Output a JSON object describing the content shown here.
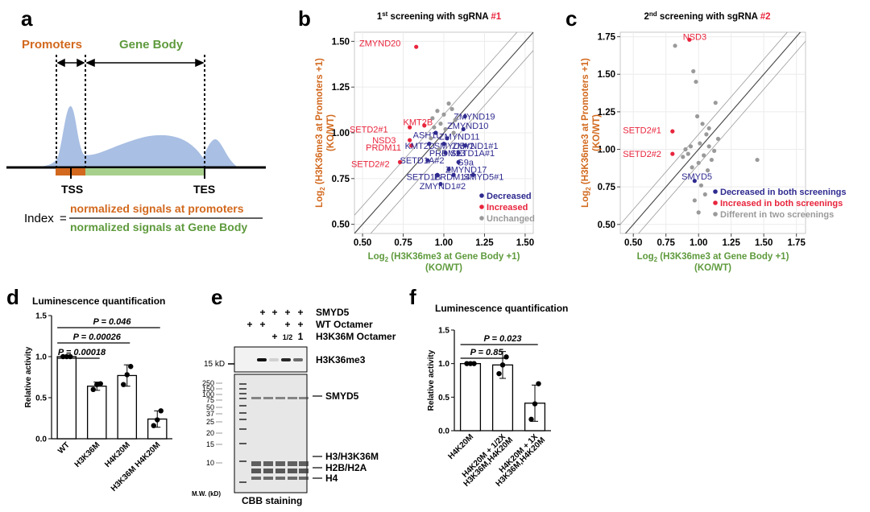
{
  "panel_labels": {
    "a": "a",
    "b": "b",
    "c": "c",
    "d": "d",
    "e": "e",
    "f": "f"
  },
  "colors": {
    "orange": "#d2691e",
    "green": "#5e9a3c",
    "red": "#e8243c",
    "blue": "#2e2a8f",
    "gray": "#9a9a9a",
    "fill": "#a9bfe3"
  },
  "panel_a": {
    "promoters": "Promoters",
    "gene_body": "Gene Body",
    "tss": "TSS",
    "tes": "TES",
    "index_label": "Index",
    "index_eq": "=",
    "numerator": "normalized signals at promoters",
    "denominator": "normalized signals at Gene Body"
  },
  "chart_data": [
    {
      "id": "b",
      "type": "scatter",
      "title_prefix": "1",
      "title_sup": "st",
      "title_main": " screening with sgRNA ",
      "title_hl": "#1",
      "ylabel_pre": "Log",
      "ylabel_sub": "2",
      "ylabel_main": " (H3K36me3 at Promoters +1)",
      "ylabel_2": "(KO/WT)",
      "xlabel_pre": "Log",
      "xlabel_sub": "2",
      "xlabel_main": " (H3K36me3 at Gene Body +1)",
      "xlabel_2": "(KO/WT)",
      "xlim": [
        0.45,
        1.55
      ],
      "ylim": [
        0.45,
        1.55
      ],
      "xticks": [
        "0.50",
        "0.75",
        "1.00",
        "1.25",
        "1.50"
      ],
      "yticks": [
        "0.50",
        "0.75",
        "1.00",
        "1.25",
        "1.50"
      ],
      "legend": [
        {
          "label": "Decreased",
          "color": "#2e2a8f"
        },
        {
          "label": "Increased",
          "color": "#e8243c"
        },
        {
          "label": "Unchanged",
          "color": "#9a9a9a"
        }
      ],
      "points": [
        {
          "x": 0.83,
          "y": 1.47,
          "label": "ZMYND20",
          "color": "#e8243c",
          "lx": 0.48,
          "ly": 1.49
        },
        {
          "x": 0.88,
          "y": 1.04,
          "label": "KMT2B",
          "color": "#e8243c",
          "lx": 0.75,
          "ly": 1.06
        },
        {
          "x": 0.79,
          "y": 1.03,
          "label": "SETD2#1",
          "color": "#e8243c",
          "lx": 0.42,
          "ly": 1.02
        },
        {
          "x": 0.79,
          "y": 0.96,
          "label": "NSD3",
          "color": "#e8243c",
          "lx": 0.56,
          "ly": 0.96
        },
        {
          "x": 0.8,
          "y": 0.93,
          "label": "PRDM11",
          "color": "#e8243c",
          "lx": 0.52,
          "ly": 0.92
        },
        {
          "x": 0.73,
          "y": 0.84,
          "label": "SETD2#2",
          "color": "#e8243c",
          "lx": 0.43,
          "ly": 0.83
        },
        {
          "x": 1.13,
          "y": 1.09,
          "label": "ZMYND19",
          "color": "#2e2a8f",
          "lx": 1.06,
          "ly": 1.09
        },
        {
          "x": 1.12,
          "y": 1.02,
          "label": "ZMYND10",
          "color": "#2e2a8f",
          "lx": 1.02,
          "ly": 1.04
        },
        {
          "x": 0.95,
          "y": 1.0,
          "label": "ASH1L",
          "color": "#2e2a8f",
          "lx": 0.81,
          "ly": 0.99
        },
        {
          "x": 0.91,
          "y": 0.94,
          "label": "KMT2D",
          "color": "#2e2a8f",
          "lx": 0.76,
          "ly": 0.93
        },
        {
          "x": 1.02,
          "y": 0.97,
          "label": "ZMYND11",
          "color": "#2e2a8f",
          "lx": 0.97,
          "ly": 0.98
        },
        {
          "x": 1.0,
          "y": 0.94,
          "label": "SMYD5#2",
          "color": "#2e2a8f",
          "lx": 0.94,
          "ly": 0.93
        },
        {
          "x": 1.13,
          "y": 0.93,
          "label": "ZMYND1#1",
          "color": "#2e2a8f",
          "lx": 1.05,
          "ly": 0.93
        },
        {
          "x": 1.01,
          "y": 0.89,
          "label": "PRDM13",
          "color": "#2e2a8f",
          "lx": 0.91,
          "ly": 0.89
        },
        {
          "x": 1.09,
          "y": 0.89,
          "label": "SETD1A#1",
          "color": "#2e2a8f",
          "lx": 1.04,
          "ly": 0.89
        },
        {
          "x": 0.9,
          "y": 0.85,
          "label": "SETD1A#2",
          "color": "#2e2a8f",
          "lx": 0.73,
          "ly": 0.85
        },
        {
          "x": 1.09,
          "y": 0.84,
          "label": "G9a",
          "color": "#2e2a8f",
          "lx": 1.08,
          "ly": 0.84
        },
        {
          "x": 1.03,
          "y": 0.8,
          "label": "ZMYND17",
          "color": "#2e2a8f",
          "lx": 1.01,
          "ly": 0.8
        },
        {
          "x": 0.96,
          "y": 0.77,
          "label": "SETD1B",
          "color": "#2e2a8f",
          "lx": 0.77,
          "ly": 0.76
        },
        {
          "x": 1.06,
          "y": 0.77,
          "label": "PRDM14",
          "color": "#2e2a8f",
          "lx": 0.94,
          "ly": 0.76
        },
        {
          "x": 1.18,
          "y": 0.77,
          "label": "SMYD5#1",
          "color": "#2e2a8f",
          "lx": 1.12,
          "ly": 0.76
        },
        {
          "x": 0.98,
          "y": 0.72,
          "label": "ZMYND1#2",
          "color": "#2e2a8f",
          "lx": 0.85,
          "ly": 0.71
        },
        {
          "x": 0.93,
          "y": 1.08,
          "label": "",
          "color": "#9a9a9a"
        },
        {
          "x": 0.96,
          "y": 1.12,
          "label": "",
          "color": "#9a9a9a"
        },
        {
          "x": 1.0,
          "y": 1.1,
          "label": "",
          "color": "#9a9a9a"
        },
        {
          "x": 1.03,
          "y": 1.16,
          "label": "",
          "color": "#9a9a9a"
        },
        {
          "x": 1.05,
          "y": 1.13,
          "label": "",
          "color": "#9a9a9a"
        },
        {
          "x": 1.07,
          "y": 1.07,
          "label": "",
          "color": "#9a9a9a"
        },
        {
          "x": 0.98,
          "y": 1.05,
          "label": "",
          "color": "#9a9a9a"
        },
        {
          "x": 0.94,
          "y": 1.03,
          "label": "",
          "color": "#9a9a9a"
        },
        {
          "x": 1.06,
          "y": 1.0,
          "label": "",
          "color": "#9a9a9a"
        },
        {
          "x": 0.92,
          "y": 0.97,
          "label": "",
          "color": "#9a9a9a"
        },
        {
          "x": 0.97,
          "y": 0.91,
          "label": "",
          "color": "#9a9a9a"
        },
        {
          "x": 1.01,
          "y": 1.02,
          "label": "",
          "color": "#9a9a9a"
        }
      ]
    },
    {
      "id": "c",
      "type": "scatter",
      "title_prefix": "2",
      "title_sup": "nd",
      "title_main": " screening with sgRNA ",
      "title_hl": "#2",
      "ylabel_pre": "Log",
      "ylabel_sub": "2",
      "ylabel_main": " (H3K36me3 at Promoters +1)",
      "ylabel_2": "(KO/WT)",
      "xlabel_pre": "Log",
      "xlabel_sub": "2",
      "xlabel_main": " (H3K36me3 at Gene Body +1)",
      "xlabel_2": "(KO/WT)",
      "xlim": [
        0.4,
        1.82
      ],
      "ylim": [
        0.44,
        1.78
      ],
      "xticks": [
        "0.50",
        "0.75",
        "1.00",
        "1.25",
        "1.50",
        "1.75"
      ],
      "yticks": [
        "0.50",
        "0.75",
        "1.00",
        "1.25",
        "1.50",
        "1.75"
      ],
      "legend": [
        {
          "label": "Decreased in both screenings",
          "color": "#2e2a8f"
        },
        {
          "label": "Increased in both screenings",
          "color": "#e8243c"
        },
        {
          "label": "Different in two screenings",
          "color": "#9a9a9a"
        }
      ],
      "points": [
        {
          "x": 0.93,
          "y": 1.73,
          "label": "NSD3",
          "color": "#e8243c",
          "lx": 0.88,
          "ly": 1.75
        },
        {
          "x": 0.8,
          "y": 1.12,
          "label": "SETD2#1",
          "color": "#e8243c",
          "lx": 0.42,
          "ly": 1.13
        },
        {
          "x": 0.8,
          "y": 0.97,
          "label": "SETD2#2",
          "color": "#e8243c",
          "lx": 0.42,
          "ly": 0.97
        },
        {
          "x": 0.97,
          "y": 0.79,
          "label": "SMYD5",
          "color": "#2e2a8f",
          "lx": 0.87,
          "ly": 0.82
        },
        {
          "x": 0.82,
          "y": 1.69,
          "label": "",
          "color": "#9a9a9a"
        },
        {
          "x": 0.96,
          "y": 1.52,
          "label": "",
          "color": "#9a9a9a"
        },
        {
          "x": 0.98,
          "y": 1.45,
          "label": "",
          "color": "#9a9a9a"
        },
        {
          "x": 1.13,
          "y": 1.31,
          "label": "",
          "color": "#9a9a9a"
        },
        {
          "x": 0.99,
          "y": 1.22,
          "label": "",
          "color": "#9a9a9a"
        },
        {
          "x": 1.03,
          "y": 1.17,
          "label": "",
          "color": "#9a9a9a"
        },
        {
          "x": 1.06,
          "y": 1.1,
          "label": "",
          "color": "#9a9a9a"
        },
        {
          "x": 1.15,
          "y": 1.07,
          "label": "",
          "color": "#9a9a9a"
        },
        {
          "x": 1.01,
          "y": 1.04,
          "label": "",
          "color": "#9a9a9a"
        },
        {
          "x": 1.08,
          "y": 1.02,
          "label": "",
          "color": "#9a9a9a"
        },
        {
          "x": 0.94,
          "y": 1.02,
          "label": "",
          "color": "#9a9a9a"
        },
        {
          "x": 1.12,
          "y": 0.99,
          "label": "",
          "color": "#9a9a9a"
        },
        {
          "x": 0.92,
          "y": 0.97,
          "label": "",
          "color": "#9a9a9a"
        },
        {
          "x": 1.04,
          "y": 0.96,
          "label": "",
          "color": "#9a9a9a"
        },
        {
          "x": 0.88,
          "y": 0.95,
          "label": "",
          "color": "#9a9a9a"
        },
        {
          "x": 1.1,
          "y": 0.93,
          "label": "",
          "color": "#9a9a9a"
        },
        {
          "x": 1.45,
          "y": 0.93,
          "label": "",
          "color": "#9a9a9a"
        },
        {
          "x": 1.0,
          "y": 0.91,
          "label": "",
          "color": "#9a9a9a"
        },
        {
          "x": 0.95,
          "y": 0.88,
          "label": "",
          "color": "#9a9a9a"
        },
        {
          "x": 1.07,
          "y": 0.86,
          "label": "",
          "color": "#9a9a9a"
        },
        {
          "x": 1.02,
          "y": 0.76,
          "label": "",
          "color": "#9a9a9a"
        },
        {
          "x": 1.05,
          "y": 0.7,
          "label": "",
          "color": "#9a9a9a"
        },
        {
          "x": 0.97,
          "y": 0.66,
          "label": "",
          "color": "#9a9a9a"
        },
        {
          "x": 1.0,
          "y": 0.58,
          "label": "",
          "color": "#9a9a9a"
        },
        {
          "x": 1.08,
          "y": 1.14,
          "label": "",
          "color": "#9a9a9a"
        },
        {
          "x": 0.9,
          "y": 1.0,
          "label": "",
          "color": "#9a9a9a"
        }
      ]
    },
    {
      "id": "d",
      "type": "bar",
      "title": "Luminescence quantification",
      "ylabel": "Relative activity",
      "ylim": [
        0,
        1.5
      ],
      "yticks": [
        "0.0",
        "0.5",
        "1.0",
        "1.5"
      ],
      "categories": [
        "WT",
        "H3K36M",
        "H4K20M",
        "H3K36M H4K20M"
      ],
      "values": [
        1.0,
        0.64,
        0.77,
        0.24
      ],
      "errors": [
        0.01,
        0.05,
        0.13,
        0.1
      ],
      "dots": [
        [
          1.0,
          1.0,
          1.0
        ],
        [
          0.6,
          0.66,
          0.67
        ],
        [
          0.66,
          0.78,
          0.88
        ],
        [
          0.16,
          0.23,
          0.34
        ]
      ],
      "pvalues": [
        {
          "label": "P = 0.046",
          "from": 0,
          "to": 3,
          "level": 2
        },
        {
          "label": "P = 0.00026",
          "from": 0,
          "to": 2,
          "level": 1
        },
        {
          "label": "P = 0.00018",
          "from": 0,
          "to": 1,
          "level": 0
        }
      ]
    },
    {
      "id": "f",
      "type": "bar",
      "title": "Luminescence quantification",
      "ylabel": "Relative activity",
      "ylim": [
        0,
        1.5
      ],
      "yticks": [
        "0.0",
        "0.5",
        "1.0",
        "1.5"
      ],
      "categories": [
        "H4K20M",
        "H4K20M + 1/2X H3K36M,H4K20M",
        "H4K20M + 1X H3K36M,H4K20M"
      ],
      "cat_lines": [
        [
          "H4K20M"
        ],
        [
          "H4K20M + 1/2X",
          "H3K36M,H4K20M"
        ],
        [
          "H4K20M + 1X",
          "H3K36M,H4K20M"
        ]
      ],
      "values": [
        1.0,
        0.98,
        0.41
      ],
      "errors": [
        0.01,
        0.2,
        0.27
      ],
      "dots": [
        [
          1.0,
          1.0,
          1.0
        ],
        [
          0.85,
          0.98,
          1.1
        ],
        [
          0.17,
          0.4,
          0.7
        ]
      ],
      "pvalues": [
        {
          "label": "P = 0.023",
          "from": 0,
          "to": 2,
          "level": 1
        },
        {
          "label": "P = 0.85",
          "from": 0,
          "to": 1,
          "level": 0
        }
      ]
    }
  ],
  "panel_e": {
    "row_labels": [
      "SMYD5",
      "WT Octamer",
      "H3K36M Octamer"
    ],
    "lanes": [
      [
        "",
        "",
        "+",
        "+",
        "+",
        "+"
      ],
      [
        "",
        "+",
        "+",
        "",
        "+",
        "+"
      ],
      [
        "",
        "",
        "",
        "+",
        "1/2",
        "1"
      ]
    ],
    "marker_15": "15 kD",
    "h3k36me3": "H3K36me3",
    "mw": [
      "250",
      "150",
      "100",
      "75",
      "50",
      "37",
      "25",
      "20",
      "15",
      "10"
    ],
    "mw_label": "M.W. (kD)",
    "band_labels": [
      "SMYD5",
      "H3/H3K36M",
      "H2B/H2A",
      "H4"
    ],
    "caption": "CBB staining"
  }
}
